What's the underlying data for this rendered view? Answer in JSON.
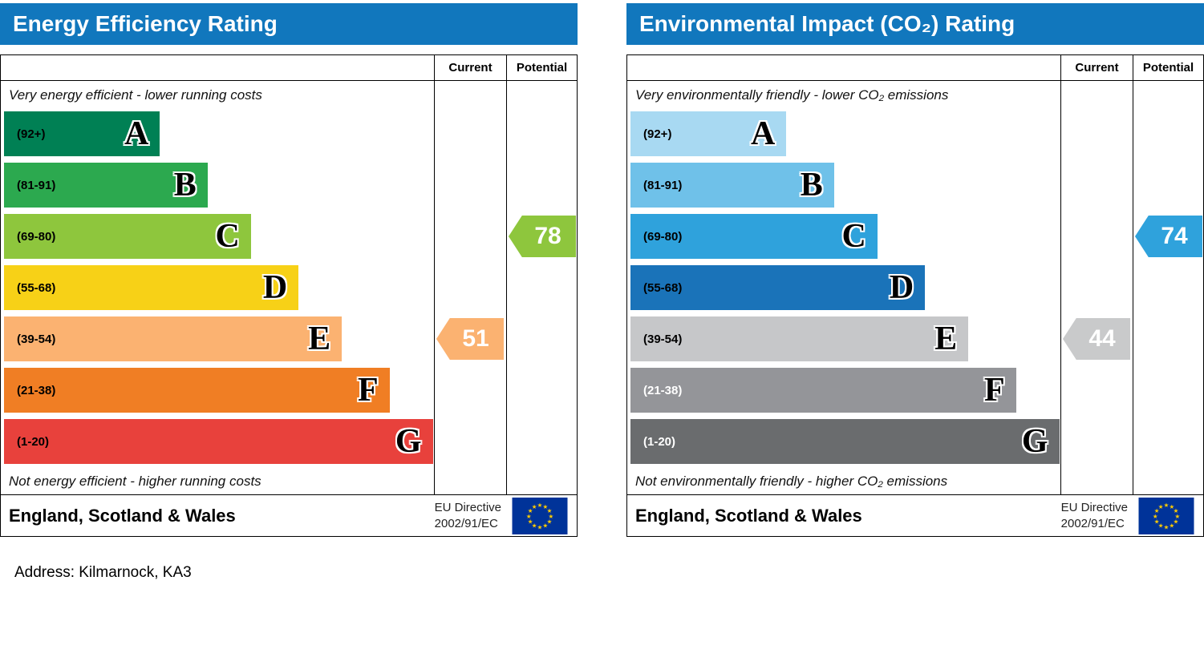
{
  "address_line": "Address: Kilmarnock, KA3",
  "charts": [
    {
      "title": "Energy Efficiency Rating",
      "header_color": "#1177bd",
      "columns": {
        "current": "Current",
        "potential": "Potential"
      },
      "top_caption": "Very energy efficient - lower running costs",
      "bottom_caption": "Not energy efficient - higher running costs",
      "bands": [
        {
          "letter": "A",
          "range": "(92+)",
          "color": "#008054",
          "text_color": "#000000",
          "width": "36%"
        },
        {
          "letter": "B",
          "range": "(81-91)",
          "color": "#2ca94f",
          "text_color": "#000000",
          "width": "47%"
        },
        {
          "letter": "C",
          "range": "(69-80)",
          "color": "#8ec63d",
          "text_color": "#000000",
          "width": "57%"
        },
        {
          "letter": "D",
          "range": "(55-68)",
          "color": "#f7d117",
          "text_color": "#000000",
          "width": "68%"
        },
        {
          "letter": "E",
          "range": "(39-54)",
          "color": "#fbb271",
          "text_color": "#000000",
          "width": "78%"
        },
        {
          "letter": "F",
          "range": "(21-38)",
          "color": "#f07e24",
          "text_color": "#000000",
          "width": "89%"
        },
        {
          "letter": "G",
          "range": "(1-20)",
          "color": "#e8413c",
          "text_color": "#000000",
          "width": "99%"
        }
      ],
      "current": {
        "value": 51,
        "color": "#fbb271",
        "band_index": 4
      },
      "potential": {
        "value": 78,
        "color": "#8ec63d",
        "band_index": 2
      },
      "footer": {
        "region": "England, Scotland & Wales",
        "directive_line1": "EU Directive",
        "directive_line2": "2002/91/EC"
      }
    },
    {
      "title": "Environmental Impact (CO₂) Rating",
      "header_color": "#1177bd",
      "columns": {
        "current": "Current",
        "potential": "Potential"
      },
      "top_caption": "Very environmentally friendly - lower CO₂ emissions",
      "bottom_caption": "Not environmentally friendly - higher CO₂ emissions",
      "bands": [
        {
          "letter": "A",
          "range": "(92+)",
          "color": "#a8d9f2",
          "text_color": "#000000",
          "width": "36%"
        },
        {
          "letter": "B",
          "range": "(81-91)",
          "color": "#6fc1e9",
          "text_color": "#000000",
          "width": "47%"
        },
        {
          "letter": "C",
          "range": "(69-80)",
          "color": "#2fa2dc",
          "text_color": "#000000",
          "width": "57%"
        },
        {
          "letter": "D",
          "range": "(55-68)",
          "color": "#1a73b9",
          "text_color": "#000000",
          "width": "68%"
        },
        {
          "letter": "E",
          "range": "(39-54)",
          "color": "#c6c7c9",
          "text_color": "#000000",
          "width": "78%"
        },
        {
          "letter": "F",
          "range": "(21-38)",
          "color": "#949599",
          "text_color": "#ffffff",
          "width": "89%"
        },
        {
          "letter": "G",
          "range": "(1-20)",
          "color": "#6a6c6e",
          "text_color": "#ffffff",
          "width": "99%"
        }
      ],
      "current": {
        "value": 44,
        "color": "#c9cacb",
        "band_index": 4
      },
      "potential": {
        "value": 74,
        "color": "#2fa2dc",
        "band_index": 2
      },
      "footer": {
        "region": "England, Scotland & Wales",
        "directive_line1": "EU Directive",
        "directive_line2": "2002/91/EC"
      }
    }
  ],
  "chart_data": [
    {
      "type": "bar",
      "title": "Energy Efficiency Rating",
      "categories": [
        "A",
        "B",
        "C",
        "D",
        "E",
        "F",
        "G"
      ],
      "band_ranges": [
        "92+",
        "81-91",
        "69-80",
        "55-68",
        "39-54",
        "21-38",
        "1-20"
      ],
      "band_widths_percent": [
        36,
        47,
        57,
        68,
        78,
        89,
        99
      ],
      "current": {
        "value": 51,
        "band": "E"
      },
      "potential": {
        "value": 78,
        "band": "C"
      },
      "annotations": [
        "Very energy efficient - lower running costs",
        "Not energy efficient - higher running costs"
      ],
      "region": "England, Scotland & Wales",
      "directive": "EU Directive 2002/91/EC",
      "legend_position": "none",
      "grid": false
    },
    {
      "type": "bar",
      "title": "Environmental Impact (CO₂) Rating",
      "categories": [
        "A",
        "B",
        "C",
        "D",
        "E",
        "F",
        "G"
      ],
      "band_ranges": [
        "92+",
        "81-91",
        "69-80",
        "55-68",
        "39-54",
        "21-38",
        "1-20"
      ],
      "band_widths_percent": [
        36,
        47,
        57,
        68,
        78,
        89,
        99
      ],
      "current": {
        "value": 44,
        "band": "E"
      },
      "potential": {
        "value": 74,
        "band": "C"
      },
      "annotations": [
        "Very environmentally friendly - lower CO₂ emissions",
        "Not environmentally friendly - higher CO₂ emissions"
      ],
      "region": "England, Scotland & Wales",
      "directive": "EU Directive 2002/91/EC",
      "legend_position": "none",
      "grid": false
    }
  ]
}
